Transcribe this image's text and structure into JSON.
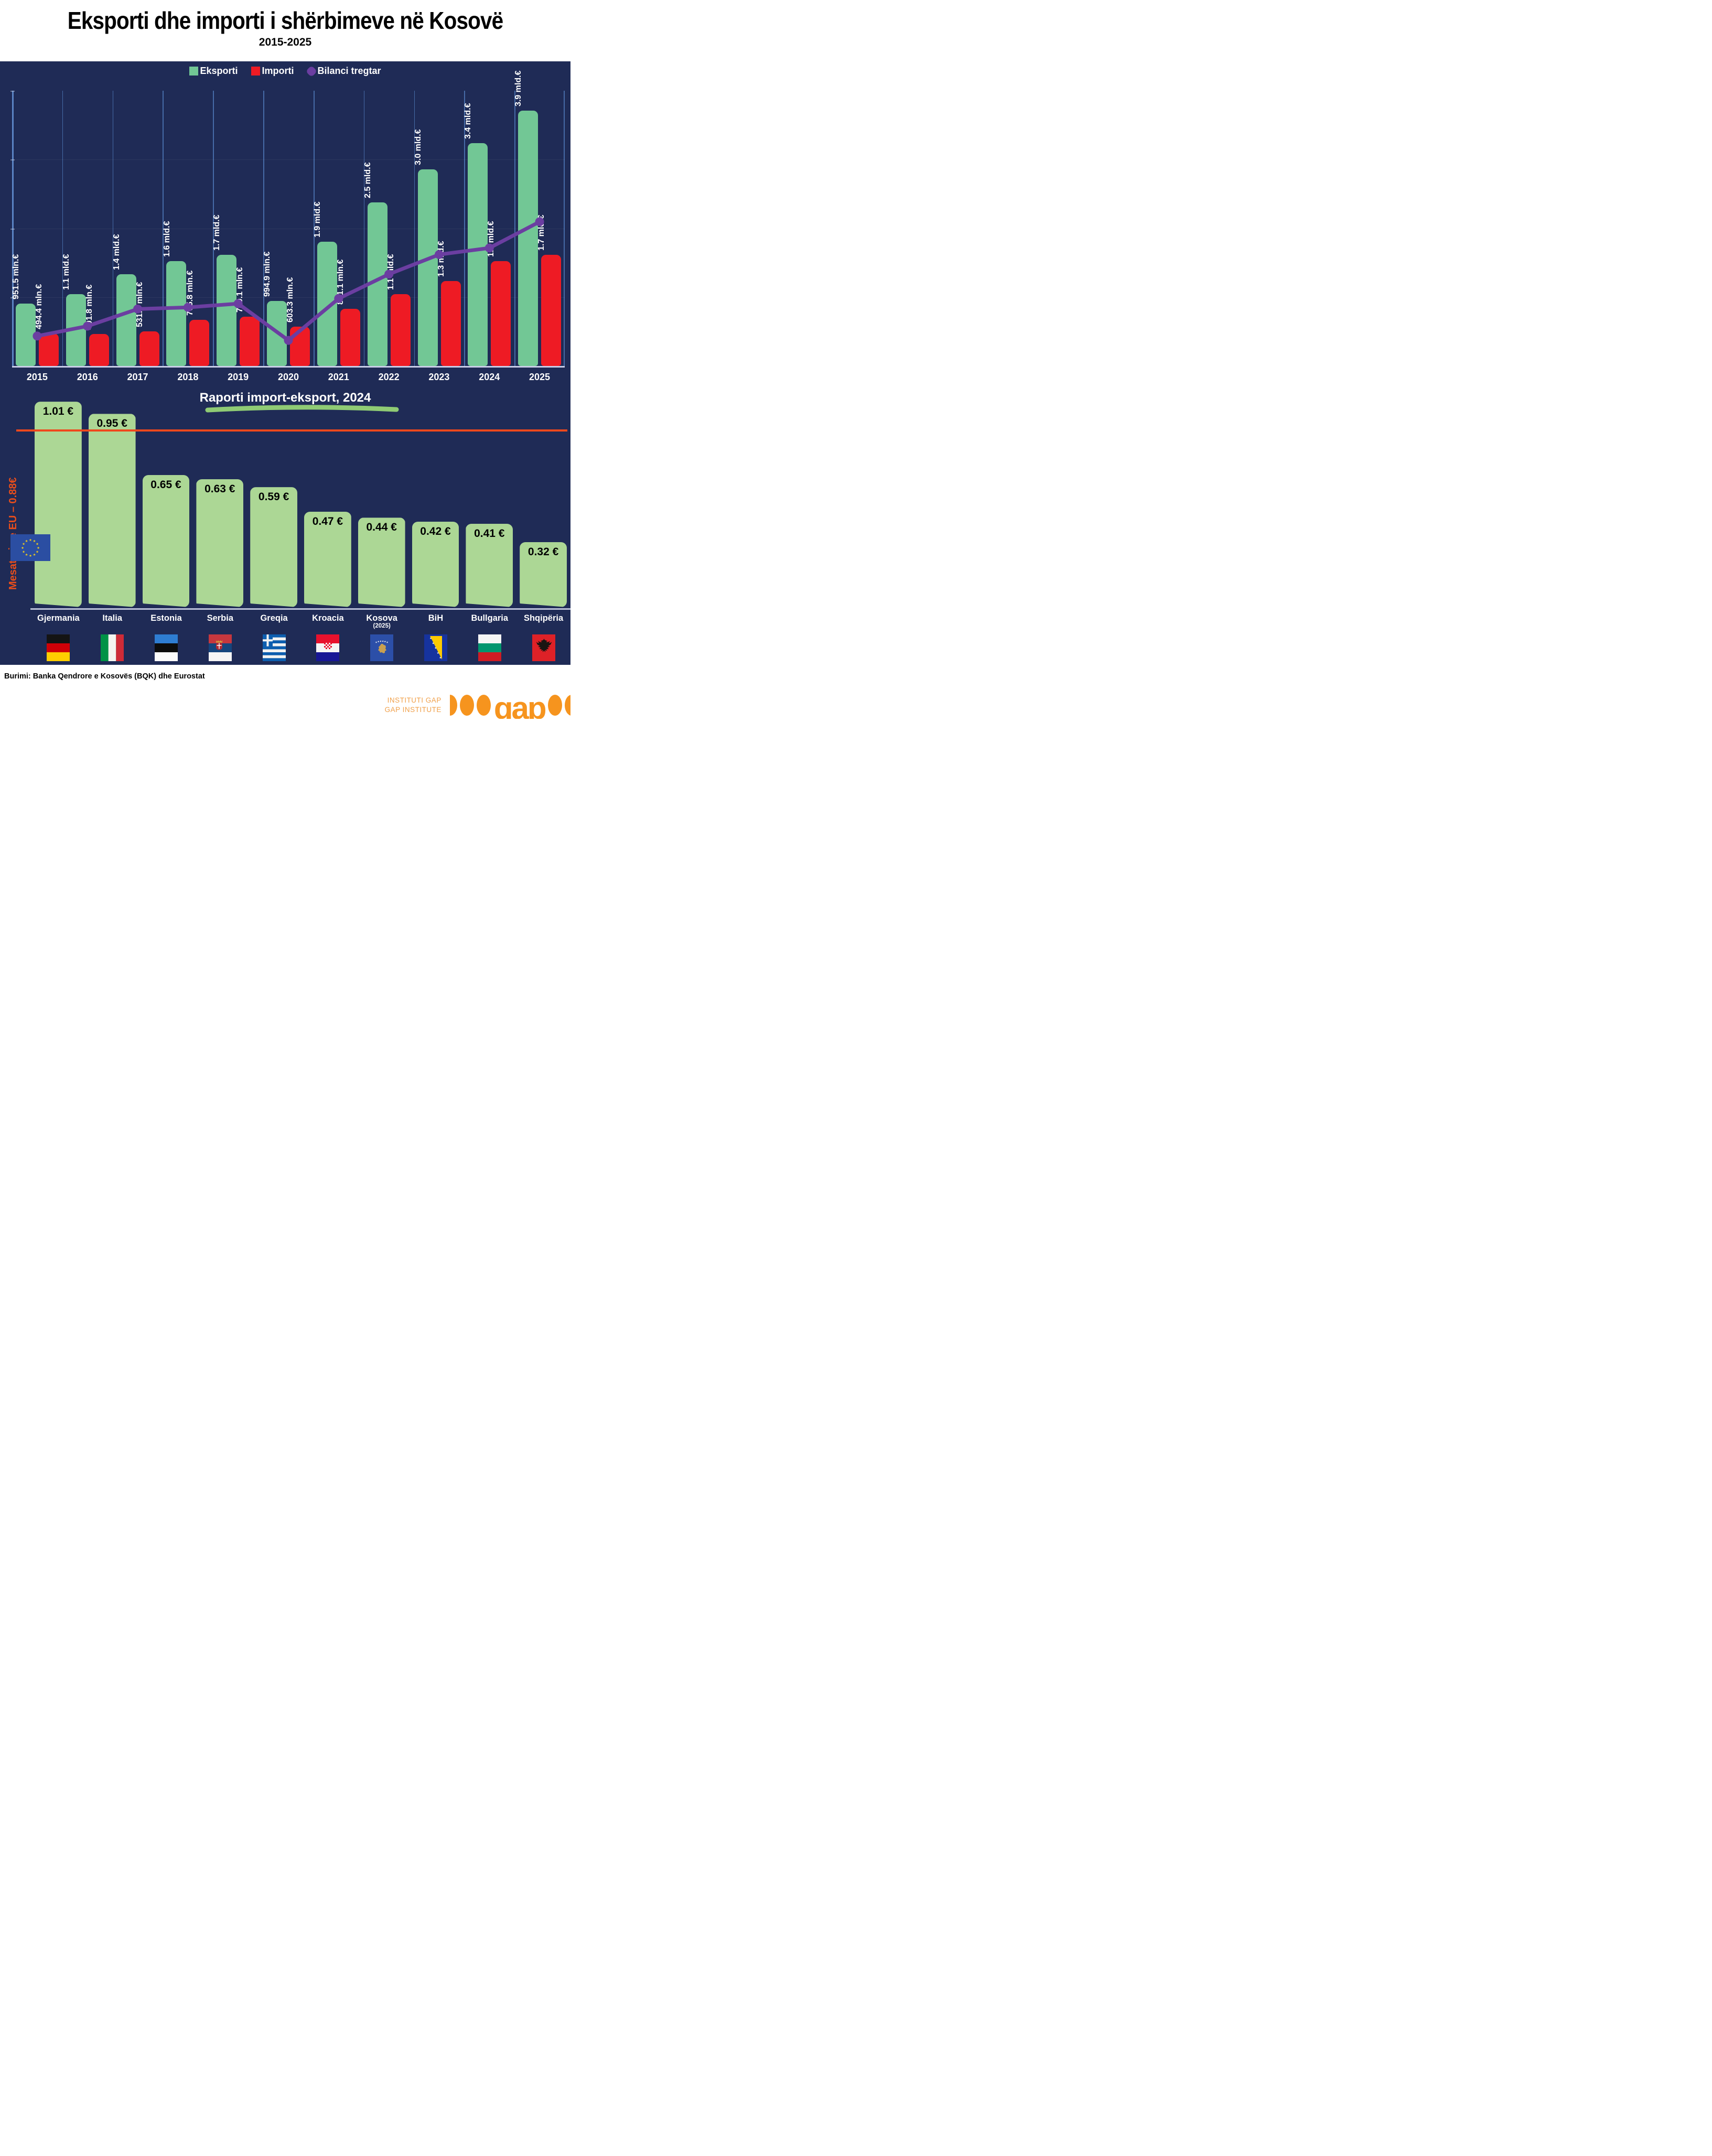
{
  "header": {
    "title": "Eksporti dhe importi i shërbimeve në Kosovë",
    "subtitle": "2015-2025"
  },
  "legend": [
    {
      "label": "Eksporti",
      "color": "#72C795",
      "marker": "square"
    },
    {
      "label": "Importi",
      "color": "#EE1B24",
      "marker": "square"
    },
    {
      "label": "Bilanci tregtar",
      "color": "#6B3EA1",
      "marker": "diamond"
    }
  ],
  "palette": {
    "background_navy": "#1F2B56",
    "export_green": "#72C795",
    "import_red": "#EE1B24",
    "balance_purple": "#6B3EA1",
    "ratio_bar_green": "#ACD795",
    "eu_line_orange": "#F0481C",
    "eu_label_orange": "#E94E1B",
    "gridline_blue": "#4D77B5",
    "baseline_light": "#C9CDE8",
    "swoosh_green": "#8FCB74",
    "logo_orange": "#F6941E"
  },
  "chart_data": [
    {
      "type": "bar-line",
      "categories": [
        "2015",
        "2016",
        "2017",
        "2018",
        "2019",
        "2020",
        "2021",
        "2022",
        "2023",
        "2024",
        "2025"
      ],
      "series": [
        {
          "name": "Eksporti",
          "type": "bar",
          "unit": "mln €",
          "values": [
            951.5,
            1100,
            1400,
            1600,
            1700,
            994.9,
            1900,
            2500,
            3000,
            3400,
            3900
          ],
          "labels": [
            "951.5 mln.€",
            "1.1 mld.€",
            "1.4 mld.€",
            "1.6 mld.€",
            "1.7 mld.€",
            "994.9 mln.€",
            "1.9 mld.€",
            "2.5 mld.€",
            "3.0 mld.€",
            "3.4 mld.€",
            "3.9 mld.€"
          ]
        },
        {
          "name": "Importi",
          "type": "bar",
          "unit": "mln €",
          "values": [
            494.4,
            491.8,
            531.5,
            705.8,
            749.1,
            603.3,
            871.1,
            1100,
            1300,
            1600,
            1700
          ],
          "labels": [
            "494.4 mln.€",
            "491.8 mln.€",
            "531.5 mln.€",
            "705.8 mln.€",
            "749.1 mln.€",
            "603.3 mln.€",
            "871.1 mln.€",
            "1.1 mld.€",
            "1.3 mld.€",
            "1.6 mld.€",
            "1.7 mld.€"
          ]
        },
        {
          "name": "Bilanci tregtar",
          "type": "line",
          "unit": "mln €",
          "estimated": true,
          "values": [
            457.1,
            608.2,
            868.5,
            894.2,
            950.9,
            391.6,
            1028.9,
            1400,
            1700,
            1800,
            2200
          ]
        }
      ],
      "ylim": [
        0,
        4200
      ],
      "grid": "vertical",
      "legend_position": "top"
    },
    {
      "type": "bar",
      "title": "Raporti import-eksport, 2024",
      "categories": [
        "Gjermania",
        "Italia",
        "Estonia",
        "Serbia",
        "Greqia",
        "Kroacia",
        "Kosova",
        "BiH",
        "Bullgaria",
        "Shqipëria"
      ],
      "category_notes": [
        "",
        "",
        "",
        "",
        "",
        "",
        "(2025)",
        "",
        "",
        ""
      ],
      "values": [
        1.01,
        0.95,
        0.65,
        0.63,
        0.59,
        0.47,
        0.44,
        0.42,
        0.41,
        0.32
      ],
      "labels": [
        "1.01 €",
        "0.95 €",
        "0.65 €",
        "0.63 €",
        "0.59 €",
        "0.47 €",
        "0.44 €",
        "0.42 €",
        "0.41 €",
        "0.32 €"
      ],
      "flags": [
        "flag-germany",
        "flag-italy",
        "flag-estonia",
        "flag-serbia",
        "flag-greece",
        "flag-croatia",
        "flag-kosovo",
        "flag-bih",
        "flag-bulgaria",
        "flag-albania"
      ],
      "reference_line": {
        "value": 0.88,
        "label": "Mesatarja e EU – 0.88€"
      },
      "ylim": [
        0,
        1.05
      ],
      "grid": "off"
    }
  ],
  "footer": {
    "source": "Burimi: Banka Qendrore e Kosovës (BQK) dhe Eurostat",
    "logo": {
      "line1": "INSTITUTI GAP",
      "line2": "GAP INSTITUTE",
      "wordmark": "gap"
    }
  }
}
